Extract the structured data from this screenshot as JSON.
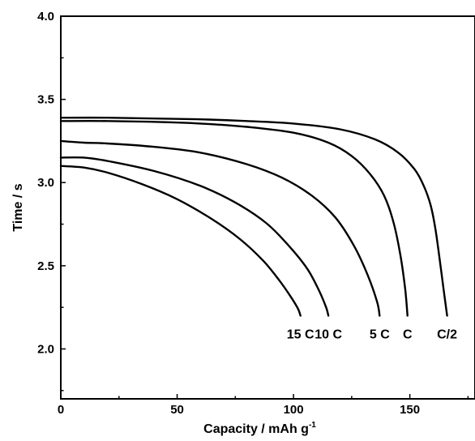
{
  "chart_data": {
    "type": "line",
    "xlabel": "Capacity / mAh g",
    "xlabel_superscript": "-1",
    "ylabel": "Time / s",
    "xlim": [
      0,
      178
    ],
    "ylim": [
      1.7,
      4.0
    ],
    "x_ticks": [
      0,
      50,
      100,
      150
    ],
    "x_tick_labels": [
      "0",
      "50",
      "100",
      "150"
    ],
    "x_minor_ticks": [
      25,
      75,
      125,
      175
    ],
    "y_ticks": [
      2.0,
      2.5,
      3.0,
      3.5,
      4.0
    ],
    "y_tick_labels": [
      "2.0",
      "2.5",
      "3.0",
      "3.5",
      "4.0"
    ],
    "y_minor_ticks": [
      1.75,
      2.25,
      2.75,
      3.25,
      3.75
    ],
    "grid": false,
    "series": [
      {
        "name": "C/2",
        "x": [
          0,
          20,
          40,
          60,
          80,
          100,
          120,
          135,
          145,
          152,
          156,
          159,
          161,
          163,
          164.5,
          166
        ],
        "y": [
          3.39,
          3.39,
          3.385,
          3.38,
          3.37,
          3.355,
          3.32,
          3.26,
          3.18,
          3.08,
          2.98,
          2.86,
          2.72,
          2.52,
          2.36,
          2.2
        ]
      },
      {
        "name": "C",
        "x": [
          0,
          20,
          40,
          60,
          80,
          100,
          115,
          125,
          133,
          139,
          143,
          146,
          148,
          149
        ],
        "y": [
          3.37,
          3.37,
          3.365,
          3.355,
          3.335,
          3.3,
          3.24,
          3.16,
          3.05,
          2.92,
          2.76,
          2.56,
          2.36,
          2.2
        ]
      },
      {
        "name": "5 C",
        "x": [
          0,
          10,
          20,
          40,
          60,
          80,
          95,
          108,
          118,
          126,
          132,
          136,
          137
        ],
        "y": [
          3.25,
          3.24,
          3.235,
          3.215,
          3.18,
          3.11,
          3.03,
          2.92,
          2.79,
          2.62,
          2.44,
          2.28,
          2.2
        ]
      },
      {
        "name": "10 C",
        "x": [
          0,
          10,
          20,
          40,
          60,
          75,
          88,
          98,
          106,
          111,
          114,
          115
        ],
        "y": [
          3.15,
          3.15,
          3.13,
          3.07,
          2.98,
          2.88,
          2.76,
          2.62,
          2.48,
          2.35,
          2.25,
          2.2
        ]
      },
      {
        "name": "15 C",
        "x": [
          0,
          10,
          20,
          35,
          50,
          65,
          77,
          87,
          94,
          99,
          102,
          103
        ],
        "y": [
          3.1,
          3.09,
          3.06,
          2.99,
          2.9,
          2.78,
          2.66,
          2.53,
          2.41,
          2.31,
          2.24,
          2.2
        ]
      }
    ]
  }
}
